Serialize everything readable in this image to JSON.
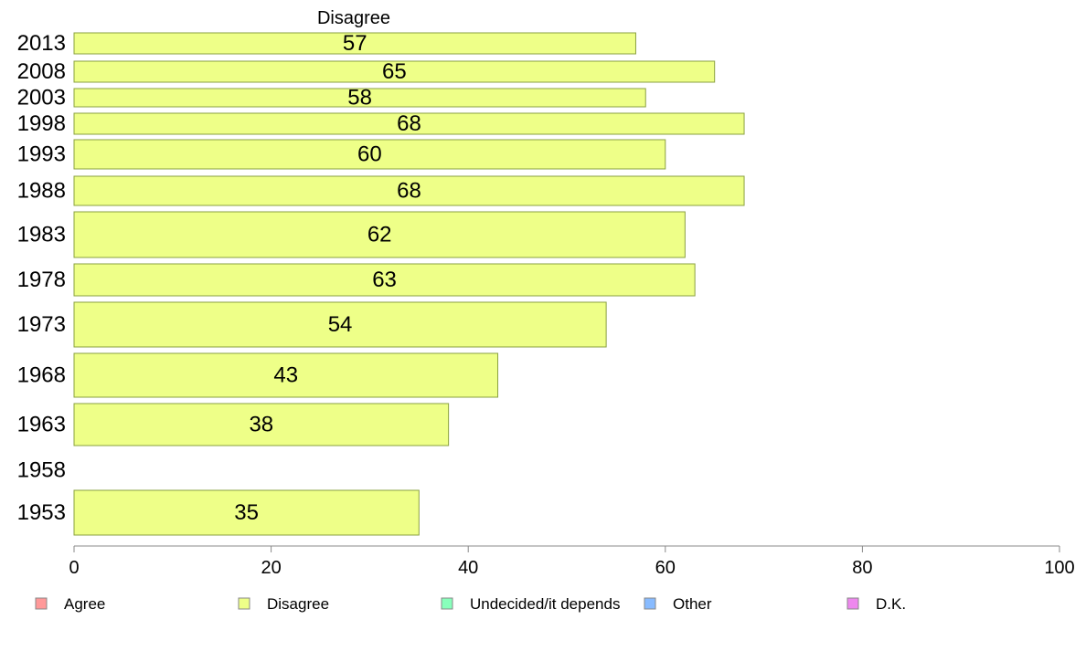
{
  "chart_data": {
    "type": "bar",
    "orientation": "horizontal",
    "series_title": "Disagree",
    "categories": [
      "2013",
      "2008",
      "2003",
      "1998",
      "1993",
      "1988",
      "1983",
      "1978",
      "1973",
      "1968",
      "1963",
      "1958",
      "1953"
    ],
    "series": [
      {
        "name": "Disagree",
        "values": [
          57,
          65,
          58,
          68,
          60,
          68,
          62,
          63,
          54,
          43,
          38,
          null,
          35
        ]
      }
    ],
    "xlim": [
      0,
      100
    ],
    "xticks": [
      0,
      20,
      40,
      60,
      80,
      100
    ],
    "grid": false,
    "legend_position": "bottom",
    "legend": [
      {
        "label": "Agree",
        "color": "#ff9999"
      },
      {
        "label": "Disagree",
        "color": "#eeff88"
      },
      {
        "label": "Undecided/it depends",
        "color": "#88ffbb"
      },
      {
        "label": "Other",
        "color": "#88bbff"
      },
      {
        "label": "D.K.",
        "color": "#ee88ee"
      }
    ],
    "bar_color": "#eeff88",
    "bar_stroke": "#8aa040"
  }
}
